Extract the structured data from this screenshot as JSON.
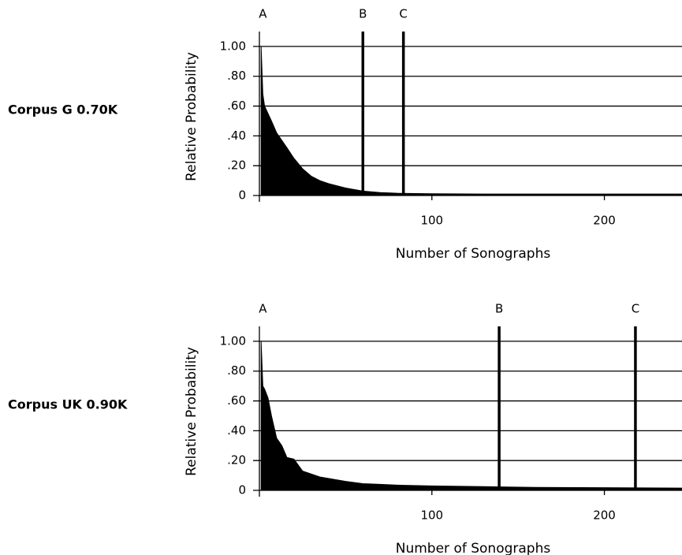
{
  "chart_data": [
    {
      "type": "area",
      "side_label": "Corpus G 0.70K",
      "ylabel": "Relative Probability",
      "xlabel": "Number of Sonographs",
      "x": [
        1,
        2,
        3,
        5,
        7,
        10,
        13,
        16,
        20,
        25,
        30,
        35,
        40,
        50,
        60,
        70,
        80,
        100,
        130,
        160,
        200,
        245
      ],
      "values": [
        1.0,
        0.68,
        0.6,
        0.55,
        0.5,
        0.42,
        0.37,
        0.32,
        0.25,
        0.18,
        0.13,
        0.1,
        0.08,
        0.05,
        0.03,
        0.02,
        0.015,
        0.012,
        0.01,
        0.01,
        0.01,
        0.01
      ],
      "color": "#000000",
      "xlim": [
        0,
        245
      ],
      "xticks": [
        100,
        200
      ],
      "ylim": [
        0,
        1.1
      ],
      "yticks": [
        0,
        {
          "value": 0.2,
          "label": ".20"
        },
        {
          "value": 0.4,
          "label": ".40"
        },
        {
          "value": 0.6,
          "label": ".60"
        },
        {
          "value": 0.8,
          "label": ".80"
        },
        {
          "value": 1,
          "label": "1.00"
        }
      ],
      "grid": true,
      "markers": [
        {
          "label": "A",
          "x": 2,
          "line": false
        },
        {
          "label": "B",
          "x": 60,
          "line": true
        },
        {
          "label": "C",
          "x": 83.5,
          "line": true
        }
      ]
    },
    {
      "type": "area",
      "side_label": "Corpus UK 0.90K",
      "ylabel": "Relative Probability",
      "xlabel": "Number of Sonographs",
      "x": [
        1,
        2,
        3,
        5,
        7,
        10,
        13,
        16,
        20,
        25,
        30,
        35,
        40,
        50,
        60,
        70,
        80,
        100,
        130,
        160,
        200,
        245
      ],
      "values": [
        1.0,
        0.7,
        0.68,
        0.62,
        0.5,
        0.35,
        0.3,
        0.22,
        0.21,
        0.13,
        0.11,
        0.09,
        0.08,
        0.06,
        0.045,
        0.04,
        0.035,
        0.03,
        0.025,
        0.02,
        0.018,
        0.015
      ],
      "color": "#000000",
      "xlim": [
        0,
        245
      ],
      "xticks": [
        100,
        200
      ],
      "ylim": [
        0,
        1.1
      ],
      "yticks": [
        0,
        {
          "value": 0.2,
          "label": ".20"
        },
        {
          "value": 0.4,
          "label": ".40"
        },
        {
          "value": 0.6,
          "label": ".60"
        },
        {
          "value": 0.8,
          "label": ".80"
        },
        {
          "value": 1,
          "label": "1.00"
        }
      ],
      "grid": true,
      "markers": [
        {
          "label": "A",
          "x": 2,
          "line": false
        },
        {
          "label": "B",
          "x": 139,
          "line": true
        },
        {
          "label": "C",
          "x": 218,
          "line": true
        }
      ]
    }
  ]
}
